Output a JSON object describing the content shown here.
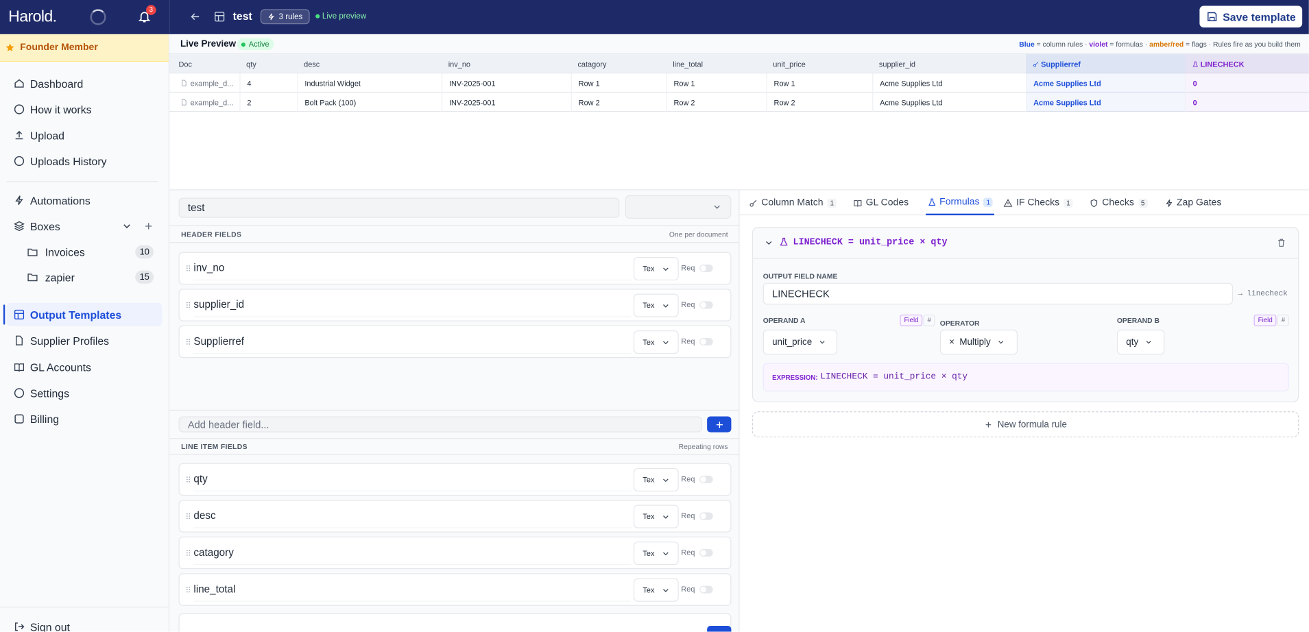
{
  "sidebar": {
    "brand": "Harold.",
    "notifications": 3,
    "member_badge": "Founder Member",
    "nav_top": [
      "Dashboard",
      "How it works",
      "Upload",
      "Uploads History"
    ],
    "automations": "Automations",
    "boxes": {
      "label": "Boxes",
      "items": [
        {
          "label": "Invoices",
          "count": 10
        },
        {
          "label": "zapier",
          "count": 15
        }
      ]
    },
    "nav_bottom": [
      "Output Templates",
      "Supplier Profiles",
      "GL Accounts",
      "Settings",
      "Billing"
    ],
    "sign_out": "Sign out"
  },
  "topbar": {
    "title": "test",
    "rules_badge": "3 rules",
    "live_label": "Live preview",
    "save_button": "Save template"
  },
  "preview": {
    "title": "Live Preview",
    "status": "Active",
    "legend": [
      {
        "text": "Blue",
        "color": "#1d4ed8"
      },
      {
        "text": " = column rules · "
      },
      {
        "text": "violet",
        "color": "#7e22ce"
      },
      {
        "text": " = formulas · "
      },
      {
        "text": "amber/red",
        "color": "#d97706"
      },
      {
        "text": " = flags · Rules fire as you build them"
      }
    ],
    "columns": [
      {
        "name": "Doc"
      },
      {
        "name": "qty"
      },
      {
        "name": "desc"
      },
      {
        "name": "inv_no"
      },
      {
        "name": "catagory"
      },
      {
        "name": "line_total"
      },
      {
        "name": "unit_price"
      },
      {
        "name": "supplier_id"
      },
      {
        "name": "Supplierref",
        "color": "#1d4ed8"
      },
      {
        "name": "LINECHECK",
        "color": "#7e22ce"
      }
    ],
    "rows": [
      [
        "example_d...",
        "4",
        "Industrial Widget",
        "INV-2025-001",
        "Row 1",
        "Row 1",
        "Row 1",
        "Acme Supplies Ltd",
        "Acme Supplies Ltd",
        "0"
      ],
      [
        "example_d...",
        "2",
        "Bolt Pack (100)",
        "INV-2025-001",
        "Row 2",
        "Row 2",
        "Row 2",
        "Acme Supplies Ltd",
        "Acme Supplies Ltd",
        "0"
      ]
    ]
  },
  "editor": {
    "template_name": "test",
    "header_section": {
      "title": "HEADER FIELDS",
      "hint": "One per document",
      "fields": [
        {
          "name": "inv_no",
          "type": "Tex",
          "required": "Req"
        },
        {
          "name": "supplier_id",
          "type": "Tex",
          "required": "Req"
        },
        {
          "name": "Supplierref",
          "type": "Tex",
          "required": "Req"
        }
      ]
    },
    "add_header_placeholder": "Add header field...",
    "line_section": {
      "title": "LINE ITEM FIELDS",
      "hint": "Repeating rows",
      "fields": [
        {
          "name": "qty",
          "type": "Tex",
          "required": "Req"
        },
        {
          "name": "desc",
          "type": "Tex",
          "required": "Req"
        },
        {
          "name": "catagory",
          "type": "Tex",
          "required": "Req"
        },
        {
          "name": "line_total",
          "type": "Tex",
          "required": "Req"
        }
      ]
    }
  },
  "rules": {
    "tabs": [
      {
        "label": "Column Match",
        "count": 1
      },
      {
        "label": "GL Codes"
      },
      {
        "label": "Formulas",
        "count": 1
      },
      {
        "label": "IF Checks",
        "count": 1
      },
      {
        "label": "Checks",
        "count": 5
      },
      {
        "label": "Zap Gates"
      }
    ],
    "formula": {
      "title": "LINECHECK = unit_price × qty",
      "output_label": "OUTPUT FIELD NAME",
      "output_value": "LINECHECK",
      "output_key": "→ linecheck",
      "operand_a": {
        "label": "OPERAND A",
        "mode": "Field",
        "alt": "#",
        "value": "unit_price"
      },
      "operator": {
        "label": "OPERATOR",
        "symbol": "×",
        "value": "Multiply"
      },
      "operand_b": {
        "label": "OPERAND B",
        "mode": "Field",
        "alt": "#",
        "value": "qty"
      },
      "expression_label": "EXPRESSION:",
      "expression": "LINECHECK = unit_price × qty"
    },
    "new_rule": "New formula rule"
  }
}
